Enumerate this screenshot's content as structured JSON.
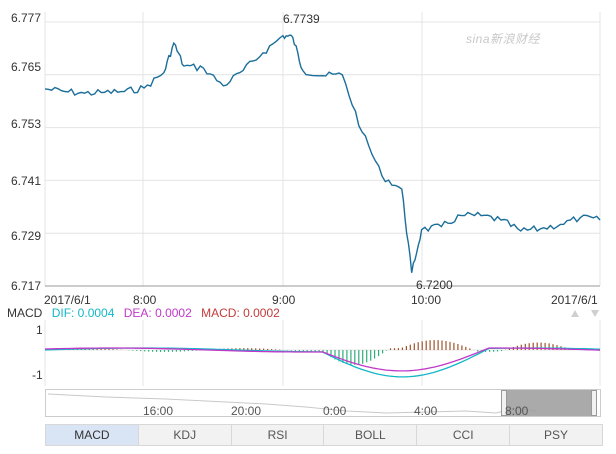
{
  "colors": {
    "price_line": "#1b6e9a",
    "dif": "#13b7c7",
    "dea": "#c038c9",
    "macd_label": "#c33a3a",
    "hist_pos": "#a0522d",
    "hist_neg": "#2fae7a",
    "tab_active_bg": "#d9e4f5",
    "grid": "#e4e4e4"
  },
  "watermark": "sina新浪财经",
  "main_chart": {
    "y_ticks": [
      "6.777",
      "6.765",
      "6.753",
      "6.741",
      "6.729",
      "6.717"
    ],
    "x_ticks": [
      "2017/6/1",
      "8:00",
      "9:00",
      "10:00",
      "2017/6/1"
    ],
    "high_label": "6.7739",
    "low_label": "6.7200"
  },
  "macd_panel": {
    "title": "MACD",
    "dif_label": "DIF: 0.0004",
    "dea_label": "DEA: 0.0002",
    "macd_label": "MACD: 0.0002",
    "y_top": "1",
    "y_bottom": "-1"
  },
  "navigator": {
    "labels": [
      "16:00",
      "20:00",
      "0:00",
      "4:00",
      "8:00"
    ]
  },
  "tabs": [
    {
      "label": "MACD",
      "active": true
    },
    {
      "label": "KDJ",
      "active": false
    },
    {
      "label": "RSI",
      "active": false
    },
    {
      "label": "BOLL",
      "active": false
    },
    {
      "label": "CCI",
      "active": false
    },
    {
      "label": "PSY",
      "active": false
    }
  ],
  "chart_data": {
    "type": "line",
    "title": "",
    "xlabel": "",
    "ylabel": "",
    "ylim": [
      6.717,
      6.777
    ],
    "x": [
      "07:00",
      "07:10",
      "07:20",
      "07:30",
      "07:40",
      "07:50",
      "08:00",
      "08:05",
      "08:10",
      "08:20",
      "08:30",
      "08:40",
      "08:50",
      "09:00",
      "09:05",
      "09:10",
      "09:20",
      "09:30",
      "09:40",
      "09:50",
      "10:00",
      "10:05",
      "10:10",
      "10:20",
      "10:30",
      "10:40",
      "10:50",
      "11:00",
      "11:10",
      "11:20",
      "11:30",
      "11:40"
    ],
    "series": [
      {
        "values": [
          6.7618,
          6.7612,
          6.7608,
          6.761,
          6.7612,
          6.762,
          6.7655,
          6.7722,
          6.767,
          6.7665,
          6.7625,
          6.766,
          6.77,
          6.7739,
          6.7735,
          6.766,
          6.7648,
          6.765,
          6.752,
          6.742,
          6.739,
          6.72,
          6.7298,
          6.7305,
          6.733,
          6.733,
          6.732,
          6.7295,
          6.73,
          6.731,
          6.7325,
          6.732
        ]
      }
    ]
  }
}
